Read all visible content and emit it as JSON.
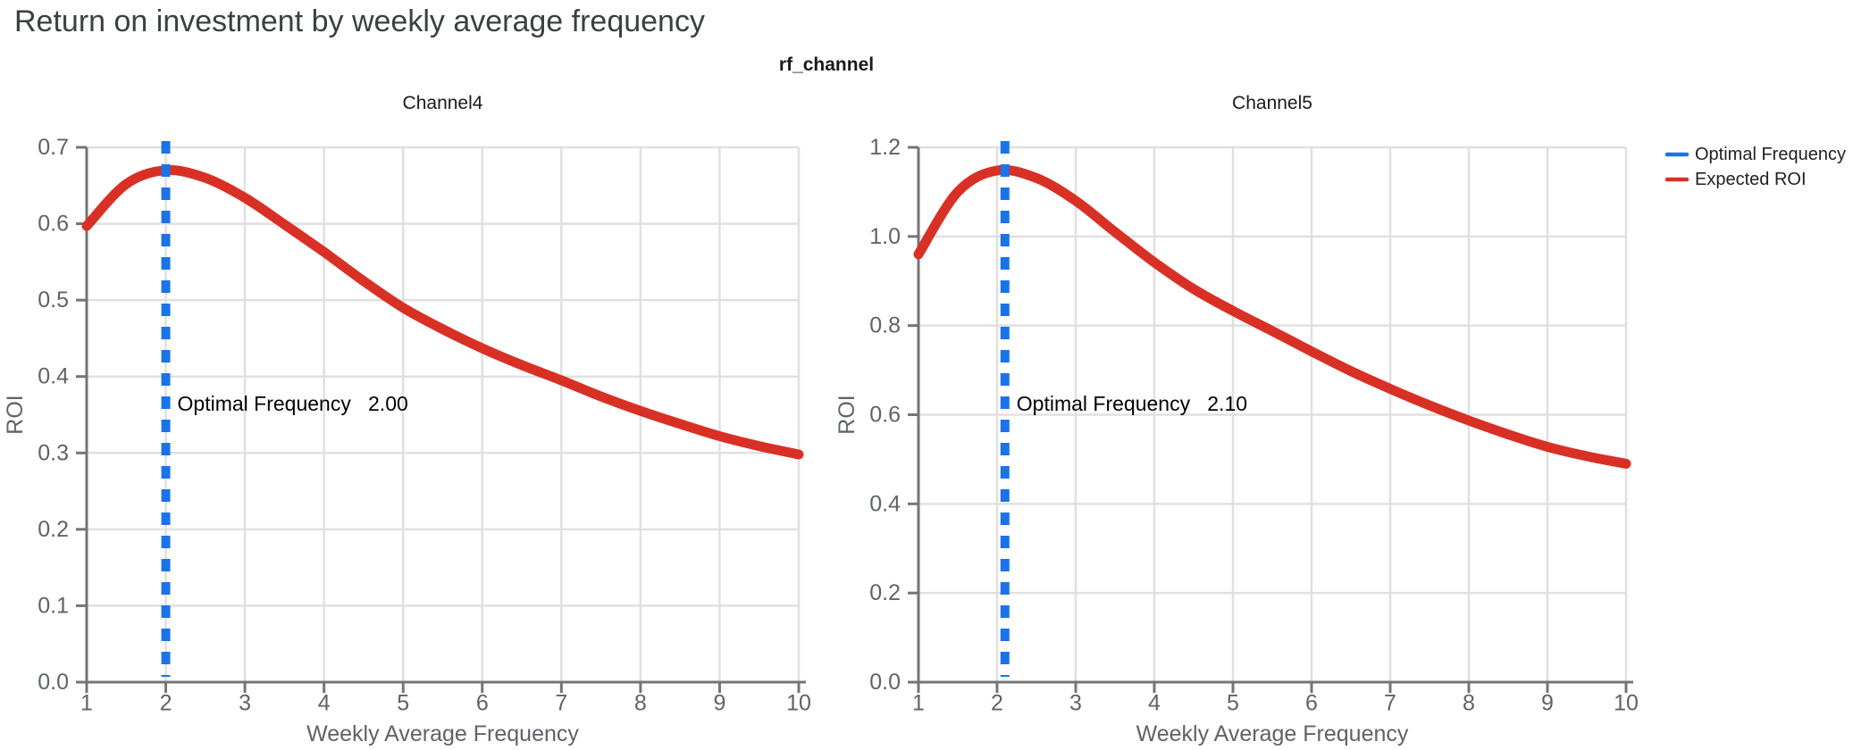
{
  "page": {
    "title": "Return on investment by weekly average frequency",
    "facet_label": "rf_channel"
  },
  "legend": {
    "position": "top-right",
    "items": [
      {
        "label": "Optimal Frequency",
        "color": "#1a73e8",
        "style": "line"
      },
      {
        "label": "Expected ROI",
        "color": "#d93025",
        "style": "line"
      }
    ]
  },
  "colors": {
    "optimal_line": "#1a73e8",
    "roi_curve": "#d93025",
    "grid": "#e0e0e0",
    "axis": "#757575",
    "tick_text": "#5f6368",
    "title_text": "#3c4043",
    "facet_text": "#1a1a1a",
    "annotation_text": "#000000"
  },
  "chart_data": [
    {
      "type": "line",
      "title": "Channel4",
      "xlabel": "Weekly Average Frequency",
      "ylabel": "ROI",
      "xlim": [
        1,
        10
      ],
      "ylim": [
        0,
        0.7
      ],
      "grid": true,
      "xticks": [
        1,
        2,
        3,
        4,
        5,
        6,
        7,
        8,
        9,
        10
      ],
      "xtick_labels": [
        "1",
        "2",
        "3",
        "4",
        "5",
        "6",
        "7",
        "8",
        "9",
        "10"
      ],
      "yticks": [
        0,
        0.1,
        0.2,
        0.3,
        0.4,
        0.5,
        0.6,
        0.7
      ],
      "ytick_labels": [
        "0.0",
        "0.1",
        "0.2",
        "0.3",
        "0.4",
        "0.5",
        "0.6",
        "0.7"
      ],
      "optimal_frequency": 2.0,
      "annotation": {
        "label": "Optimal Frequency",
        "value": "2.00"
      },
      "series": [
        {
          "name": "Expected ROI",
          "x": [
            1,
            1.5,
            2,
            2.5,
            3,
            3.5,
            4,
            4.5,
            5,
            5.5,
            6,
            6.5,
            7,
            7.5,
            8,
            8.5,
            9,
            9.5,
            10
          ],
          "y": [
            0.597,
            0.652,
            0.67,
            0.66,
            0.634,
            0.599,
            0.563,
            0.525,
            0.49,
            0.462,
            0.437,
            0.415,
            0.395,
            0.374,
            0.355,
            0.338,
            0.322,
            0.309,
            0.298
          ]
        }
      ]
    },
    {
      "type": "line",
      "title": "Channel5",
      "xlabel": "Weekly Average Frequency",
      "ylabel": "ROI",
      "xlim": [
        1,
        10
      ],
      "ylim": [
        0,
        1.2
      ],
      "grid": true,
      "xticks": [
        1,
        2,
        3,
        4,
        5,
        6,
        7,
        8,
        9,
        10
      ],
      "xtick_labels": [
        "1",
        "2",
        "3",
        "4",
        "5",
        "6",
        "7",
        "8",
        "9",
        "10"
      ],
      "yticks": [
        0,
        0.2,
        0.4,
        0.6,
        0.8,
        1.0,
        1.2
      ],
      "ytick_labels": [
        "0.0",
        "0.2",
        "0.4",
        "0.6",
        "0.8",
        "1.0",
        "1.2"
      ],
      "optimal_frequency": 2.1,
      "annotation": {
        "label": "Optimal Frequency",
        "value": "2.10"
      },
      "series": [
        {
          "name": "Expected ROI",
          "x": [
            1,
            1.5,
            2,
            2.5,
            3,
            3.5,
            4,
            4.5,
            5,
            5.5,
            6,
            6.5,
            7,
            7.5,
            8,
            8.5,
            9,
            9.5,
            10
          ],
          "y": [
            0.96,
            1.1,
            1.148,
            1.131,
            1.08,
            1.01,
            0.942,
            0.882,
            0.833,
            0.788,
            0.742,
            0.698,
            0.658,
            0.621,
            0.587,
            0.556,
            0.528,
            0.507,
            0.49
          ]
        }
      ]
    }
  ]
}
